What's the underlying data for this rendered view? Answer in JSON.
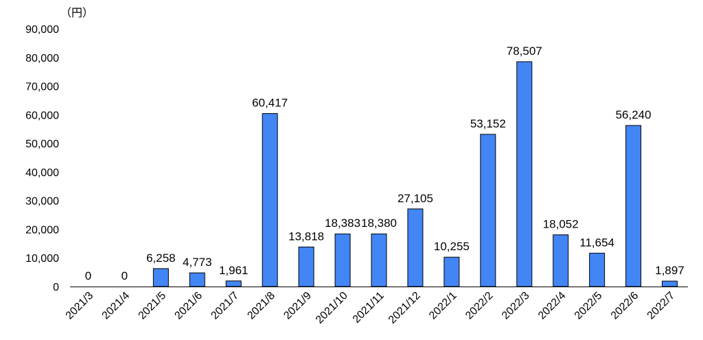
{
  "chart_data": {
    "type": "bar",
    "unit_label": "（円）",
    "categories": [
      "2021/3",
      "2021/4",
      "2021/5",
      "2021/6",
      "2021/7",
      "2021/8",
      "2021/9",
      "2021/10",
      "2021/11",
      "2021/12",
      "2022/1",
      "2022/2",
      "2022/3",
      "2022/4",
      "2022/5",
      "2022/6",
      "2022/7"
    ],
    "values": [
      0,
      0,
      6258,
      4773,
      1961,
      60417,
      13818,
      18383,
      18380,
      27105,
      10255,
      53152,
      78507,
      18052,
      11654,
      56240,
      1897
    ],
    "data_labels": [
      "0",
      "0",
      "6,258",
      "4,773",
      "1,961",
      "60,417",
      "13,818",
      "18,383",
      "18,380",
      "27,105",
      "10,255",
      "53,152",
      "78,507",
      "18,052",
      "11,654",
      "56,240",
      "1,897"
    ],
    "ylim": [
      0,
      90000
    ],
    "y_ticks": [
      0,
      10000,
      20000,
      30000,
      40000,
      50000,
      60000,
      70000,
      80000,
      90000
    ],
    "y_tick_labels": [
      "0",
      "10,000",
      "20,000",
      "30,000",
      "40,000",
      "50,000",
      "60,000",
      "70,000",
      "80,000",
      "90,000"
    ],
    "bar_color": "#4285f4",
    "bar_edge_color": "#000000",
    "grid": false,
    "legend": "none"
  }
}
